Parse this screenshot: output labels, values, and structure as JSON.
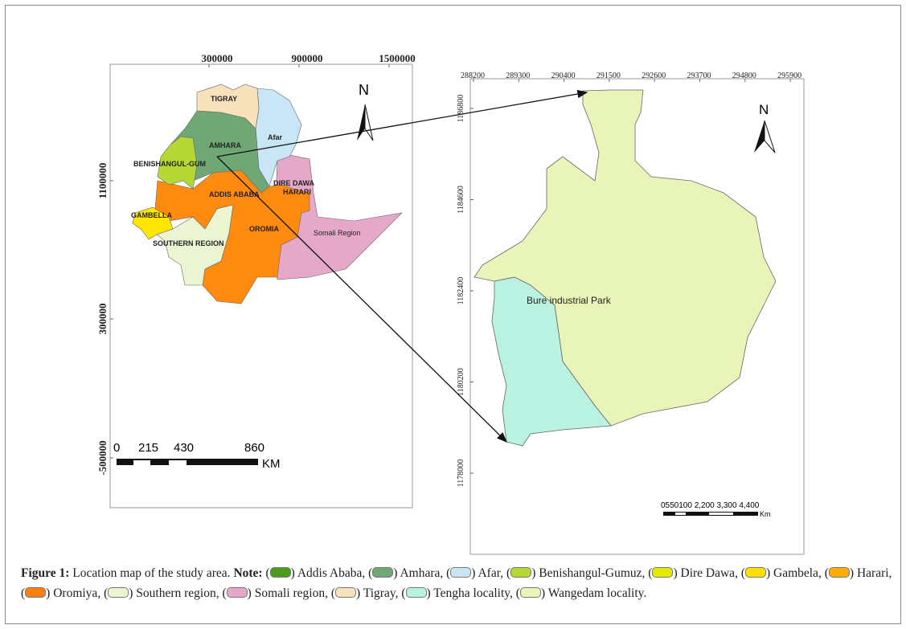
{
  "left_map": {
    "x_ticks": [
      "300000",
      "900000",
      "1500000"
    ],
    "y_ticks": [
      "1100000",
      "300000",
      "-500000"
    ],
    "north": "N",
    "regions": [
      {
        "label": "TIGRAY",
        "color": "#f8e2bc"
      },
      {
        "label": "Afar",
        "color": "#c8e6f6"
      },
      {
        "label": "AMHARA",
        "color": "#6fa874"
      },
      {
        "label": "BENISHANGUL-GUM",
        "color": "#b6d834"
      },
      {
        "label": "ADDIS ABABA",
        "color": "#ff8a10"
      },
      {
        "label": "DIRE DAWA",
        "color": "#ff8a10"
      },
      {
        "label": "HARARI",
        "color": "#ff8a10"
      },
      {
        "label": "GAMBELLA",
        "color": "#ffe600"
      },
      {
        "label": "OROMIA",
        "color": "#ff8a10"
      },
      {
        "label": "SOUTHERN REGION",
        "color": "#ebf5d2"
      },
      {
        "label": "Somali Region",
        "color": "#e6a8c8"
      }
    ],
    "scale_labels": [
      "0",
      "215",
      "430",
      "860"
    ],
    "scale_unit": "KM"
  },
  "right_map": {
    "x_ticks": [
      "288200",
      "289300",
      "290400",
      "291500",
      "292600",
      "293700",
      "294800",
      "295900"
    ],
    "y_ticks": [
      "1186800",
      "1184600",
      "1182400",
      "1180200",
      "1178000"
    ],
    "north": "N",
    "label": "Bure industrial Park",
    "scale_labels": "0550100 2,200 3,300 4,400",
    "scale_unit": "Km",
    "colors": {
      "wangedam": "#e8f4b8",
      "tengha": "#baf2e2"
    }
  },
  "caption": {
    "figure": "Figure 1:",
    "text": "Location map of the study area.",
    "note": "Note:",
    "legend": [
      {
        "label": "Addis Ababa,",
        "color": "#4c9a1e"
      },
      {
        "label": "Amhara,",
        "color": "#6fa874"
      },
      {
        "label": "Afar,",
        "color": "#c8e6f6"
      },
      {
        "label": "Benishangul-Gumuz,",
        "color": "#b6d834"
      },
      {
        "label": "Dire Dawa,",
        "color": "#e2ea00"
      },
      {
        "label": "Gambela,",
        "color": "#ffe000"
      },
      {
        "label": "Harari,",
        "color": "#ffac00"
      },
      {
        "label": "Oromiya,",
        "color": "#ff8010"
      },
      {
        "label": "Southern region,",
        "color": "#ebf5d2"
      },
      {
        "label": "Somali region,",
        "color": "#e6a8c8"
      },
      {
        "label": "Tigray,",
        "color": "#f8e2bc"
      },
      {
        "label": "Tengha locality,",
        "color": "#baf2e2"
      },
      {
        "label": "Wangedam locality.",
        "color": "#e8f4b8"
      }
    ]
  }
}
